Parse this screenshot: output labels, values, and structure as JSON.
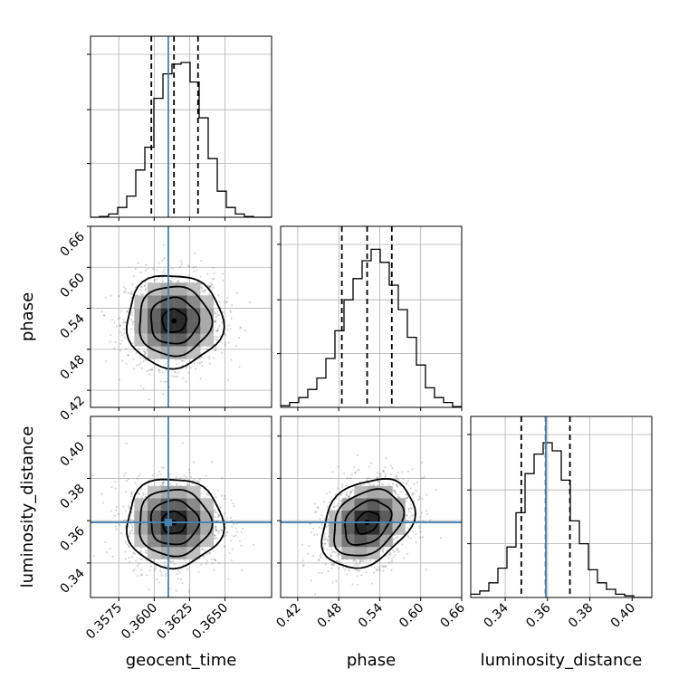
{
  "chart_data": {
    "type": "corner",
    "parameters": [
      "geocent_time",
      "phase",
      "luminosity_distance"
    ],
    "axis_labels": {
      "x": [
        "geocent_time",
        "phase",
        "luminosity_distance"
      ],
      "y": [
        "",
        "phase",
        "luminosity_distance"
      ]
    },
    "ranges": {
      "geocent_time": [
        0.3555,
        0.3683
      ],
      "phase": [
        0.395,
        0.66
      ],
      "luminosity_distance": [
        0.3237,
        0.4093
      ]
    },
    "ticks": {
      "geocent_time": {
        "values": [
          0.3575,
          0.36,
          0.3625,
          0.365
        ],
        "labels": [
          "0.3575",
          "0.3600",
          "0.3625",
          "0.3650"
        ]
      },
      "phase": {
        "values": [
          0.42,
          0.48,
          0.54,
          0.6,
          0.66
        ],
        "labels": [
          "0.42",
          "0.48",
          "0.54",
          "0.60",
          "0.66"
        ]
      },
      "luminosity_distance": {
        "values": [
          0.34,
          0.36,
          0.38,
          0.4
        ],
        "labels": [
          "0.34",
          "0.36",
          "0.38",
          "0.40"
        ]
      }
    },
    "truths": {
      "geocent_time": 0.361,
      "luminosity_distance": 0.3592
    },
    "truth_color": "#4682b4",
    "quantiles": {
      "geocent_time": [
        0.3598,
        0.3614,
        0.3631
      ],
      "phase": [
        0.4846,
        0.5216,
        0.5577
      ],
      "luminosity_distance": [
        0.3476,
        0.3591,
        0.3706
      ]
    },
    "histograms": {
      "geocent_time": {
        "edges": [
          0.3555,
          0.35614,
          0.35678,
          0.35742,
          0.35806,
          0.3587,
          0.35934,
          0.35998,
          0.36062,
          0.36126,
          0.3619,
          0.36254,
          0.36318,
          0.36382,
          0.36446,
          0.3651,
          0.36574,
          0.36638,
          0.36702,
          0.36766,
          0.3683
        ],
        "counts": [
          0,
          0.005,
          0.02,
          0.06,
          0.13,
          0.29,
          0.43,
          0.73,
          0.88,
          0.94,
          0.95,
          0.83,
          0.61,
          0.36,
          0.16,
          0.06,
          0.02,
          0.005,
          0,
          0
        ]
      },
      "phase": {
        "edges": [
          0.395,
          0.40825,
          0.4215,
          0.43475,
          0.448,
          0.46125,
          0.4745,
          0.48775,
          0.501,
          0.51425,
          0.5275,
          0.54075,
          0.554,
          0.56725,
          0.5805,
          0.59375,
          0.607,
          0.62025,
          0.6335,
          0.64675,
          0.66
        ],
        "counts": [
          0.01,
          0.03,
          0.06,
          0.11,
          0.18,
          0.3,
          0.47,
          0.66,
          0.79,
          0.9,
          0.97,
          0.89,
          0.75,
          0.6,
          0.43,
          0.26,
          0.12,
          0.06,
          0.03,
          0.005
        ]
      },
      "luminosity_distance": {
        "edges": [
          0.3237,
          0.32798,
          0.33226,
          0.33654,
          0.34082,
          0.3451,
          0.34938,
          0.35366,
          0.35794,
          0.36222,
          0.3665,
          0.37078,
          0.37506,
          0.37934,
          0.38362,
          0.3879,
          0.39218,
          0.39646,
          0.40074,
          0.40502,
          0.4093
        ],
        "counts": [
          0.02,
          0.04,
          0.09,
          0.18,
          0.31,
          0.52,
          0.76,
          0.88,
          0.95,
          0.9,
          0.72,
          0.47,
          0.33,
          0.17,
          0.09,
          0.05,
          0.02,
          0.01,
          0,
          0
        ]
      }
    },
    "joint": {
      "phase_vs_geocent_time": {
        "mean": [
          0.3614,
          0.5216
        ],
        "sd": [
          0.0017,
          0.0339
        ],
        "corr": 0.0
      },
      "luminosity_distance_vs_geocent_time": {
        "mean": [
          0.3614,
          0.3591
        ],
        "sd": [
          0.0017,
          0.0105
        ],
        "corr": 0.0
      },
      "luminosity_distance_vs_phase": {
        "mean": [
          0.5216,
          0.3591
        ],
        "sd": [
          0.0339,
          0.0105
        ],
        "corr": 0.3
      }
    },
    "grid": true
  }
}
